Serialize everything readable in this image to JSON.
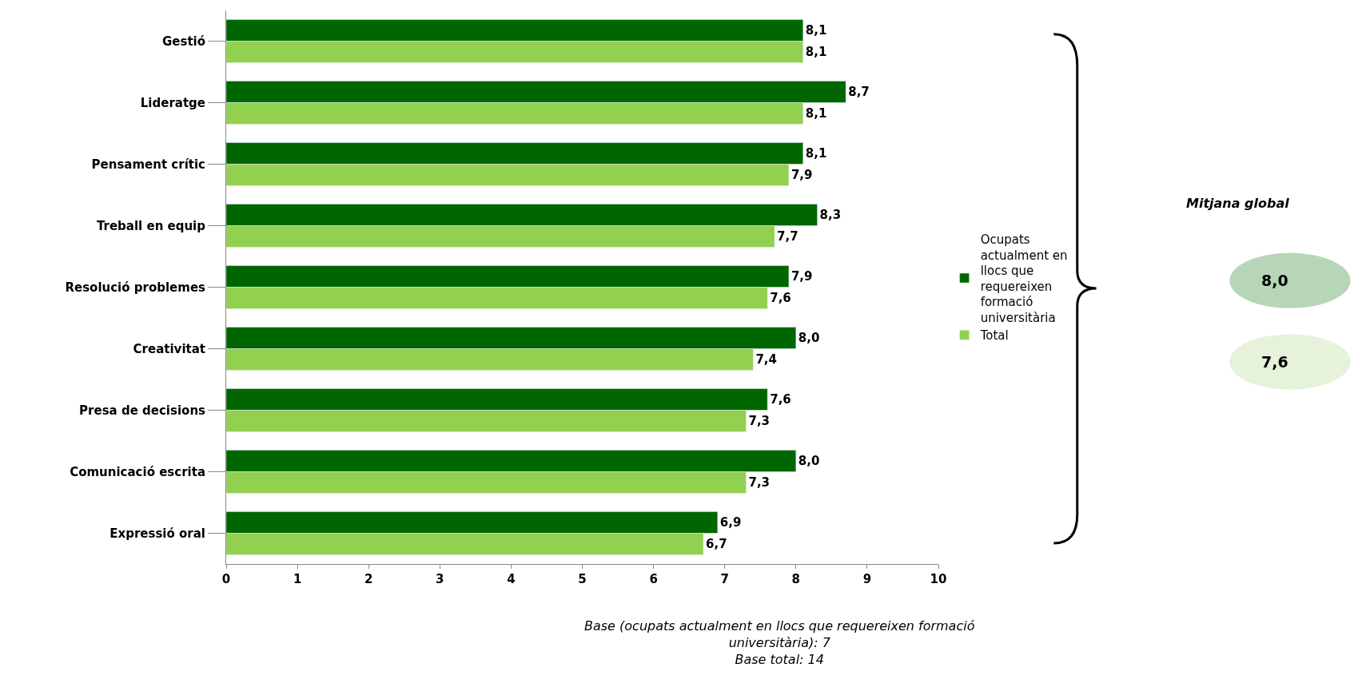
{
  "chart_data": {
    "type": "bar",
    "orientation": "horizontal",
    "categories": [
      "Gestió",
      "Lideratge",
      "Pensament crític",
      "Treball en equip",
      "Resolució problemes",
      "Creativitat",
      "Presa de decisions",
      "Comunicació escrita",
      "Expressió oral"
    ],
    "series": [
      {
        "name": "Ocupats actualment en llocs que requereixen formació universitària",
        "color": "#006600",
        "values": [
          8.1,
          8.7,
          8.1,
          8.3,
          7.9,
          8.0,
          7.6,
          8.0,
          6.9
        ],
        "value_labels": [
          "8,1",
          "8,7",
          "8,1",
          "8,3",
          "7,9",
          "8,0",
          "7,6",
          "8,0",
          "6,9"
        ]
      },
      {
        "name": "Total",
        "color": "#92d050",
        "values": [
          8.1,
          8.1,
          7.9,
          7.7,
          7.6,
          7.4,
          7.3,
          7.3,
          6.7
        ],
        "value_labels": [
          "8,1",
          "8,1",
          "7,9",
          "7,7",
          "7,6",
          "7,4",
          "7,3",
          "7,3",
          "6,7"
        ]
      }
    ],
    "xlim": [
      0,
      10
    ],
    "xticks": [
      0,
      1,
      2,
      3,
      4,
      5,
      6,
      7,
      8,
      9,
      10
    ],
    "grid": false,
    "legend": "right",
    "annotations": [
      "Mitjana global",
      "8,0",
      "7,6",
      "Base (ocupats actualment en llocs que requereixen formació universitària): 7",
      "Base total: 14"
    ]
  }
}
